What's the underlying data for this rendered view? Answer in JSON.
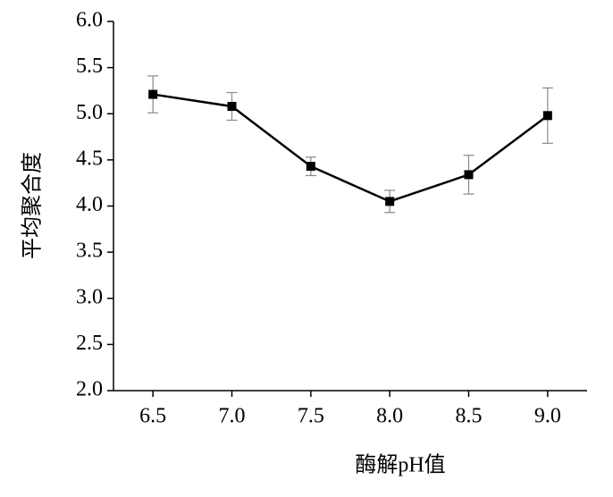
{
  "chart_data": {
    "type": "line",
    "xlabel": "酶解pH值",
    "ylabel": "平均聚合度",
    "x": [
      6.5,
      7.0,
      7.5,
      8.0,
      8.5,
      9.0
    ],
    "series": [
      {
        "color": "#000000",
        "values": [
          5.21,
          5.08,
          4.43,
          4.05,
          4.34,
          4.98
        ],
        "errors": [
          0.2,
          0.15,
          0.1,
          0.12,
          0.21,
          0.3
        ]
      }
    ],
    "xlim": [
      6.25,
      9.25
    ],
    "xticks": [
      6.5,
      {
        "value": 7,
        "label": "7.0"
      },
      7.5,
      {
        "value": 8,
        "label": "8.0"
      },
      8.5,
      {
        "value": 9,
        "label": "9.0"
      }
    ],
    "ylim": [
      2,
      6
    ],
    "yticks": [
      {
        "value": 2,
        "label": "2.0"
      },
      2.5,
      {
        "value": 3,
        "label": "3.0"
      },
      3.5,
      {
        "value": 4,
        "label": "4.0"
      },
      4.5,
      {
        "value": 5,
        "label": "5.0"
      },
      5.5,
      {
        "value": 6,
        "label": "6.0"
      }
    ],
    "error_color": "#888888"
  }
}
